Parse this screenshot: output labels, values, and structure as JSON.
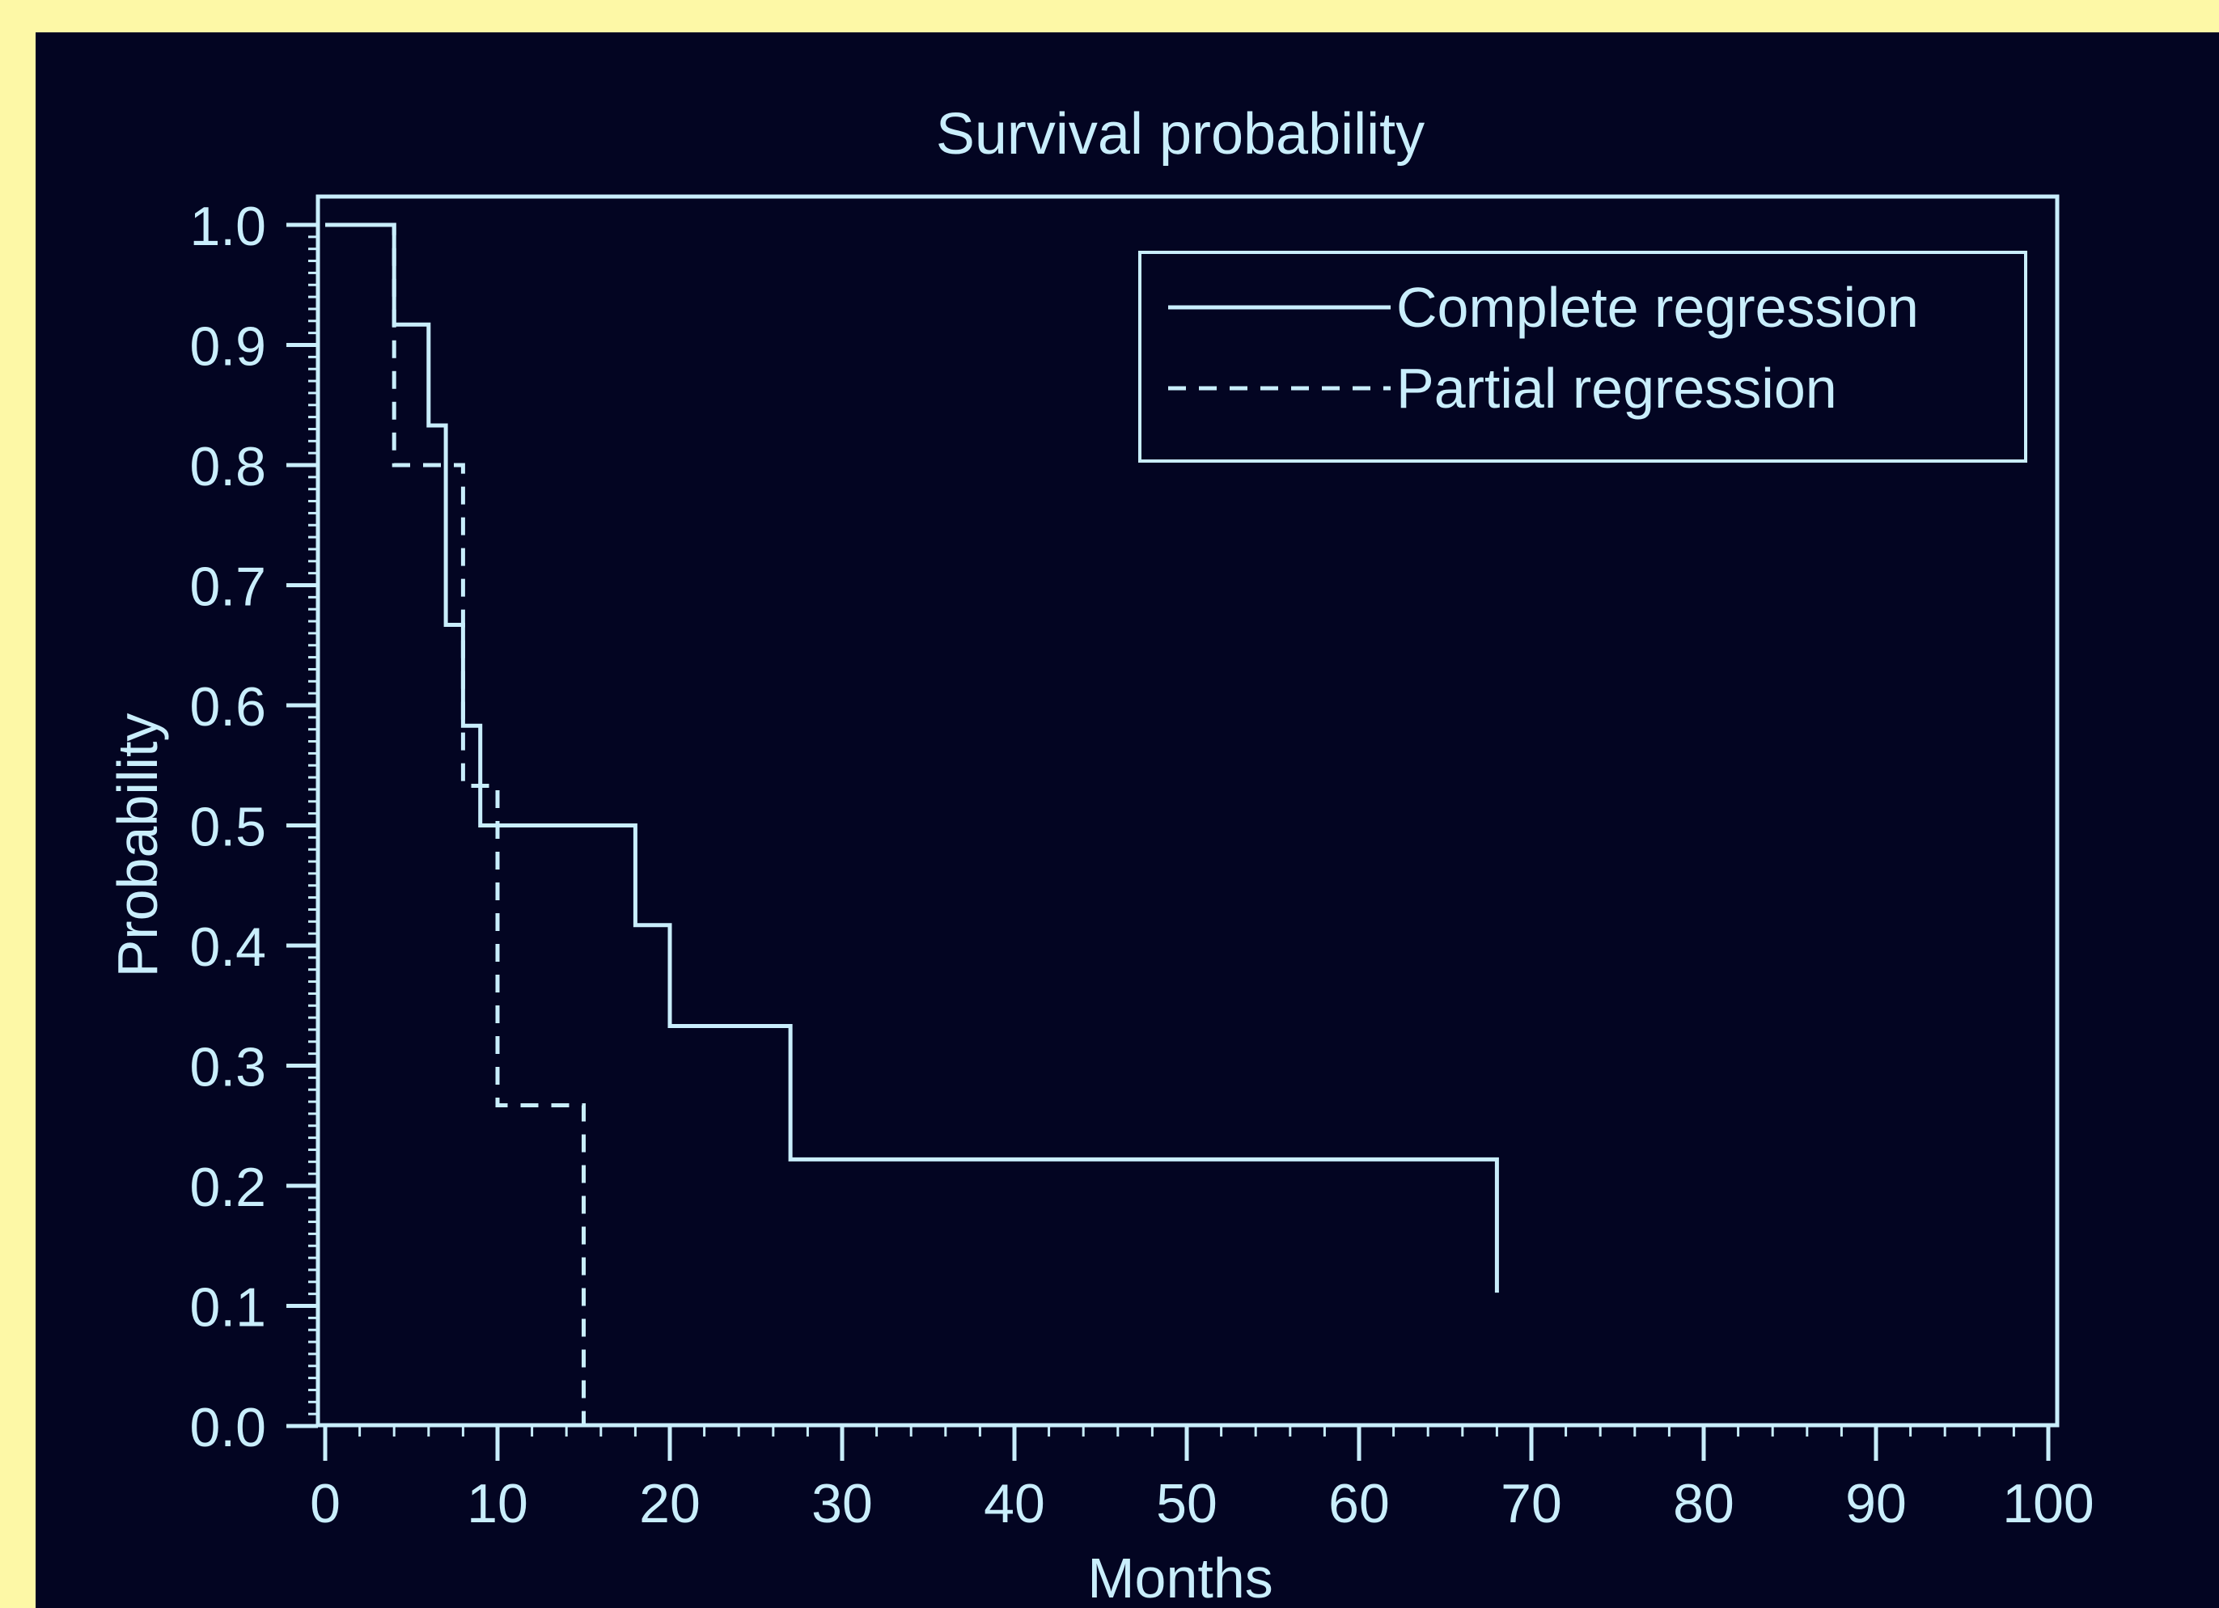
{
  "colors": {
    "frame": "#fdf8a6",
    "background": "#030522",
    "foreground": "#c9eefc"
  },
  "chart_data": {
    "type": "line",
    "step": true,
    "title": "Survival probability",
    "xlabel": "Months",
    "ylabel": "Probability",
    "xlim": [
      0,
      100
    ],
    "ylim": [
      0,
      1.0
    ],
    "xticks": [
      "0",
      "10",
      "20",
      "30",
      "40",
      "50",
      "60",
      "70",
      "80",
      "90",
      "100"
    ],
    "yticks": [
      "0.0",
      "0.1",
      "0.2",
      "0.3",
      "0.4",
      "0.5",
      "0.6",
      "0.7",
      "0.8",
      "0.9",
      "1.0"
    ],
    "legend_position": "top-right",
    "grid": false,
    "series": [
      {
        "name": "Complete regression",
        "line_style": "solid",
        "x": [
          0,
          4,
          6,
          7,
          8,
          9,
          18,
          20,
          27,
          68,
          68
        ],
        "y": [
          1.0,
          0.917,
          0.833,
          0.667,
          0.583,
          0.5,
          0.417,
          0.333,
          0.222,
          0.222,
          0.111
        ]
      },
      {
        "name": "Partial regression",
        "line_style": "dashed",
        "x": [
          0,
          4,
          8,
          10,
          15
        ],
        "y": [
          1.0,
          0.8,
          0.533,
          0.267,
          0.0
        ]
      }
    ]
  }
}
